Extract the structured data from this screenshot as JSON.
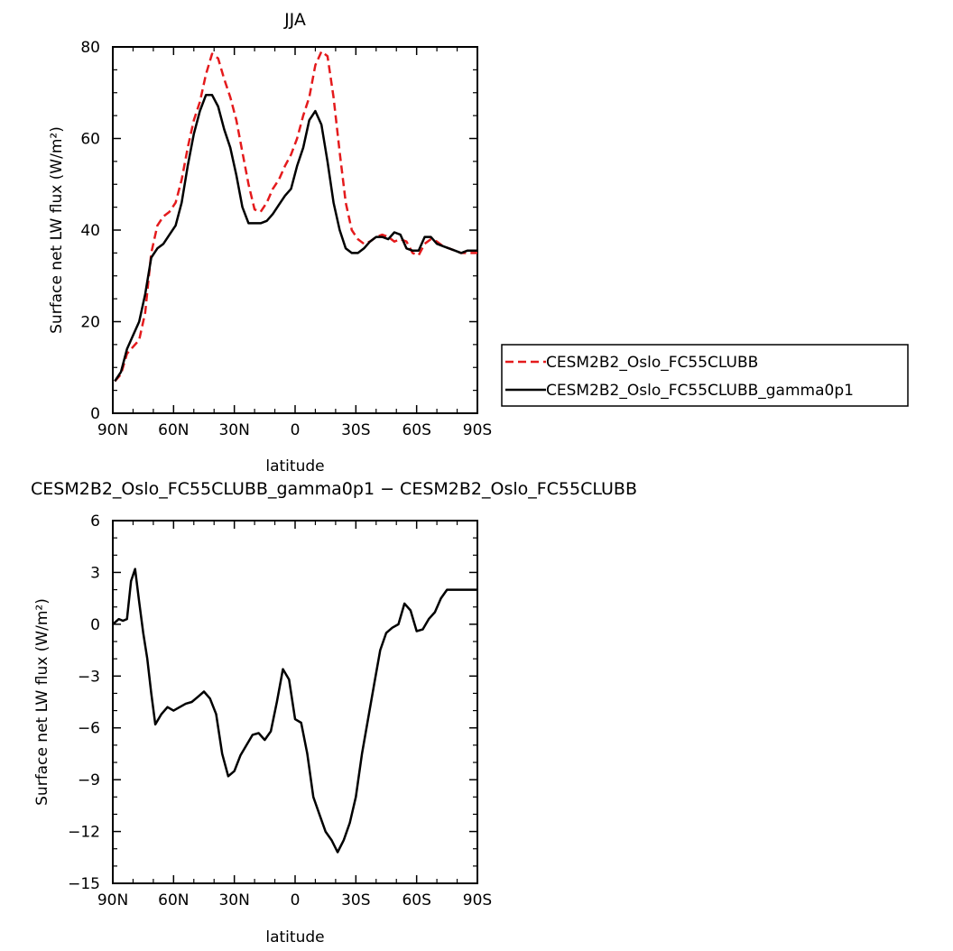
{
  "chart_data": [
    {
      "type": "line",
      "title": "JJA",
      "xlabel": "latitude",
      "ylabel": "Surface net LW flux (W/m²)",
      "xlim": [
        90,
        -90
      ],
      "ylim": [
        0,
        80
      ],
      "x_tick_values": [
        90,
        60,
        30,
        0,
        -30,
        -60,
        -90
      ],
      "x_tick_labels": [
        "90N",
        "60N",
        "30N",
        "0",
        "30S",
        "60S",
        "90S"
      ],
      "y_tick_values": [
        0,
        20,
        40,
        60,
        80
      ],
      "y_tick_labels": [
        "0",
        "20",
        "40",
        "60",
        "80"
      ],
      "legend_position": "right",
      "grid": false,
      "series": [
        {
          "name": "CESM2B2_Oslo_FC55CLUBB",
          "color": "#e41a1c",
          "dash": "dashed",
          "x": [
            89,
            86,
            83,
            80,
            77,
            74,
            71,
            68,
            65,
            62,
            59,
            56,
            53,
            50,
            47,
            44,
            41,
            38,
            35,
            32,
            29,
            26,
            23,
            20,
            17,
            14,
            11,
            8,
            5,
            2,
            -1,
            -4,
            -7,
            -10,
            -13,
            -16,
            -19,
            -22,
            -25,
            -28,
            -31,
            -34,
            -37,
            -40,
            -43,
            -46,
            -49,
            -52,
            -55,
            -58,
            -61,
            -64,
            -67,
            -70,
            -73,
            -76,
            -79,
            -82,
            -85,
            -88,
            -90
          ],
          "y": [
            7,
            8.5,
            13,
            14.5,
            16,
            22,
            35,
            41,
            43,
            44,
            46,
            51,
            58,
            64,
            68,
            74,
            78.5,
            77.5,
            73,
            69,
            64,
            57,
            50,
            44.5,
            44,
            46,
            49,
            51,
            54,
            56.5,
            60,
            65,
            69,
            76,
            79,
            78,
            69,
            57,
            46,
            40,
            38,
            37,
            37.5,
            38.5,
            39,
            38.5,
            37.5,
            38,
            37.5,
            35,
            34.5,
            37,
            38,
            37.5,
            36.5,
            36,
            35.5,
            35,
            35,
            35,
            35
          ]
        },
        {
          "name": "CESM2B2_Oslo_FC55CLUBB_gamma0p1",
          "color": "#000000",
          "dash": "solid",
          "x": [
            89,
            86,
            83,
            80,
            77,
            74,
            71,
            68,
            65,
            62,
            59,
            56,
            53,
            50,
            47,
            44,
            41,
            38,
            35,
            32,
            29,
            26,
            23,
            20,
            17,
            14,
            11,
            8,
            5,
            2,
            -1,
            -4,
            -7,
            -10,
            -13,
            -16,
            -19,
            -22,
            -25,
            -28,
            -31,
            -34,
            -37,
            -40,
            -43,
            -46,
            -49,
            -52,
            -55,
            -58,
            -61,
            -64,
            -67,
            -70,
            -73,
            -76,
            -79,
            -82,
            -85,
            -88,
            -90
          ],
          "y": [
            7,
            9,
            14,
            17,
            20,
            26,
            34,
            36,
            37,
            39,
            41,
            46,
            54,
            61,
            66,
            69.5,
            69.5,
            67,
            62,
            58,
            52,
            45,
            41.5,
            41.5,
            41.5,
            42,
            43.5,
            45.5,
            47.5,
            49,
            54,
            58,
            64,
            66,
            63,
            55,
            46,
            40,
            36,
            35,
            35,
            36,
            37.5,
            38.5,
            38.5,
            38,
            39.5,
            39,
            36,
            35.5,
            35.5,
            38.5,
            38.5,
            37,
            36.5,
            36,
            35.5,
            35,
            35.5,
            35.5,
            35.5
          ]
        }
      ]
    },
    {
      "type": "line",
      "title": "CESM2B2_Oslo_FC55CLUBB_gamma0p1 − CESM2B2_Oslo_FC55CLUBB",
      "xlabel": "latitude",
      "ylabel": "Surface net LW flux (W/m²)",
      "xlim": [
        90,
        -90
      ],
      "ylim": [
        -15,
        6
      ],
      "x_tick_values": [
        90,
        60,
        30,
        0,
        -30,
        -60,
        -90
      ],
      "x_tick_labels": [
        "90N",
        "60N",
        "30N",
        "0",
        "30S",
        "60S",
        "90S"
      ],
      "y_tick_values": [
        -15,
        -12,
        -9,
        -6,
        -3,
        0,
        3,
        6
      ],
      "y_tick_labels": [
        "−15",
        "−12",
        "−9",
        "−6",
        "−3",
        "0",
        "3",
        "6"
      ],
      "grid": false,
      "series": [
        {
          "color": "#000000",
          "dash": "solid",
          "x": [
            90,
            87,
            85,
            83,
            81,
            79,
            77,
            75,
            73,
            71,
            69,
            66,
            63,
            60,
            57,
            54,
            51,
            48,
            45,
            42,
            39,
            36,
            33,
            30,
            27,
            24,
            21,
            18,
            15,
            12,
            9,
            6,
            3,
            0,
            -3,
            -6,
            -9,
            -12,
            -15,
            -18,
            -21,
            -24,
            -27,
            -30,
            -33,
            -36,
            -39,
            -42,
            -45,
            -48,
            -51,
            -54,
            -57,
            -60,
            -63,
            -66,
            -69,
            -72,
            -75,
            -78,
            -81,
            -84,
            -87,
            -90
          ],
          "y": [
            0,
            0.3,
            0.2,
            0.3,
            2.5,
            3.2,
            1.3,
            -0.5,
            -2,
            -4,
            -5.8,
            -5.2,
            -4.8,
            -5,
            -4.8,
            -4.6,
            -4.5,
            -4.2,
            -3.9,
            -4.3,
            -5.2,
            -7.5,
            -8.8,
            -8.5,
            -7.6,
            -7,
            -6.4,
            -6.3,
            -6.7,
            -6.2,
            -4.5,
            -2.6,
            -3.2,
            -5.5,
            -5.7,
            -7.5,
            -10,
            -11,
            -12,
            -12.5,
            -13.2,
            -12.5,
            -11.5,
            -10,
            -7.5,
            -5.5,
            -3.5,
            -1.5,
            -0.5,
            -0.2,
            0,
            1.2,
            0.8,
            -0.4,
            -0.3,
            0.3,
            0.7,
            1.5,
            2,
            2,
            2,
            2,
            2,
            2
          ]
        }
      ]
    }
  ]
}
